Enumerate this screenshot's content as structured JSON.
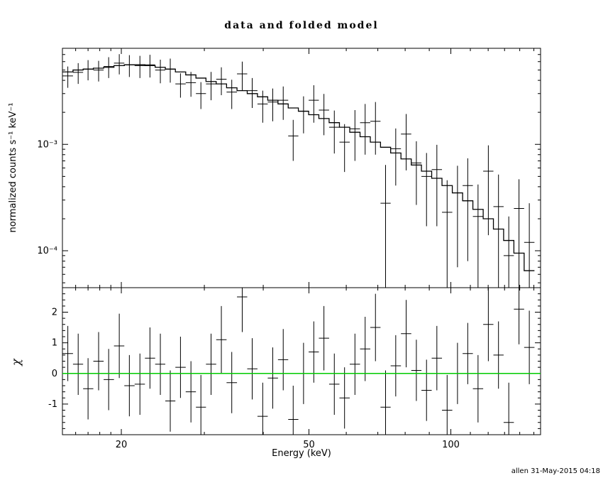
{
  "chart_data": {
    "type": "line",
    "title": "data and folded model",
    "xlabel": "Energy (keV)",
    "ylabel_top": "normalized counts s⁻¹ keV⁻¹",
    "ylabel_bottom": "χ",
    "footer": "allen 31-May-2015 04:18",
    "x_scale": "log",
    "y_scale_top": "log",
    "y_scale_bottom": "linear",
    "xlim": [
      15,
      155
    ],
    "ylim_top": [
      4.5e-05,
      0.008
    ],
    "ylim_bottom": [
      -2.0,
      2.8
    ],
    "legend": "none",
    "grid": false,
    "x_ticks": [
      {
        "v": 20,
        "label": "20"
      },
      {
        "v": 50,
        "label": "50"
      },
      {
        "v": 100,
        "label": "100"
      }
    ],
    "y_ticks_top": [
      {
        "v": 0.001,
        "label": "10⁻³"
      },
      {
        "v": 0.0001,
        "label": "10⁻⁴"
      }
    ],
    "y_ticks_bottom": [
      {
        "v": 2,
        "label": "2"
      },
      {
        "v": 1,
        "label": "1"
      },
      {
        "v": 0,
        "label": "0"
      },
      {
        "v": -1,
        "label": "-1"
      }
    ],
    "model_color": "#000000",
    "data_color": "#000000",
    "zero_line_color": "#00cc00",
    "energy_kev": [
      15.4,
      16.2,
      17.0,
      17.9,
      18.8,
      19.8,
      20.8,
      21.9,
      23.0,
      24.2,
      25.4,
      26.7,
      28.1,
      29.5,
      31.0,
      32.6,
      34.3,
      36.1,
      37.9,
      39.9,
      41.9,
      44.1,
      46.3,
      48.7,
      51.2,
      53.8,
      56.6,
      59.5,
      62.6,
      65.8,
      69.2,
      72.7,
      76.4,
      80.4,
      84.5,
      88.8,
      93.4,
      98.2,
      103.3,
      108.6,
      114.2,
      120.1,
      126.2,
      132.7,
      139.5,
      146.7
    ],
    "model_counts": [
      0.0048,
      0.005,
      0.0051,
      0.0052,
      0.0053,
      0.0055,
      0.0056,
      0.0056,
      0.0055,
      0.0053,
      0.0051,
      0.0048,
      0.0045,
      0.0042,
      0.0039,
      0.0037,
      0.0034,
      0.0032,
      0.003,
      0.0028,
      0.0026,
      0.0024,
      0.0022,
      0.00205,
      0.0019,
      0.00175,
      0.0016,
      0.00145,
      0.0013,
      0.00118,
      0.00105,
      0.00094,
      0.00083,
      0.00073,
      0.00064,
      0.00056,
      0.00048,
      0.00041,
      0.00035,
      0.000295,
      0.000245,
      0.0002,
      0.00016,
      0.000125,
      9.5e-05,
      6.5e-05
    ],
    "data_counts": [
      0.0044,
      0.00475,
      0.0051,
      0.005,
      0.0054,
      0.0058,
      0.0056,
      0.0055,
      0.0056,
      0.005,
      0.0051,
      0.0037,
      0.0038,
      0.003,
      0.0037,
      0.0041,
      0.0031,
      0.0046,
      0.0032,
      0.0024,
      0.0025,
      0.0026,
      0.0012,
      0.00205,
      0.0026,
      0.0021,
      0.00145,
      0.00105,
      0.0014,
      0.0016,
      0.00165,
      0.00028,
      0.00091,
      0.00125,
      0.00067,
      0.0005,
      0.00058,
      0.00023,
      0.00035,
      0.00041,
      0.00021,
      0.00056,
      0.00026,
      9e-05,
      0.00025,
      0.00012
    ],
    "data_err": [
      0.001,
      0.00105,
      0.0011,
      0.0011,
      0.0012,
      0.00125,
      0.0013,
      0.0013,
      0.00135,
      0.00125,
      0.0013,
      0.00095,
      0.001,
      0.00085,
      0.0011,
      0.0012,
      0.00095,
      0.0014,
      0.001,
      0.0008,
      0.00085,
      0.0009,
      0.0005,
      0.00078,
      0.001,
      0.00088,
      0.00063,
      0.0005,
      0.0007,
      0.0008,
      0.00085,
      0.00036,
      0.0005,
      0.00068,
      0.0004,
      0.00033,
      0.00041,
      0.00023,
      0.00028,
      0.00033,
      0.00021,
      0.00042,
      0.00026,
      0.00012,
      0.00022,
      0.00016
    ],
    "chi": [
      0.65,
      0.3,
      -0.5,
      0.4,
      -0.2,
      0.9,
      -0.4,
      -0.35,
      0.5,
      0.3,
      -0.9,
      0.2,
      -0.6,
      -1.1,
      0.3,
      1.1,
      -0.3,
      2.5,
      0.15,
      -1.4,
      -0.15,
      0.45,
      -1.5,
      0.0,
      0.7,
      1.15,
      -0.35,
      -0.8,
      0.3,
      0.8,
      1.5,
      -1.1,
      0.25,
      1.3,
      0.1,
      -0.55,
      0.5,
      -1.2,
      0.0,
      0.65,
      -0.5,
      1.6,
      0.6,
      -1.6,
      2.1,
      0.85
    ],
    "chi_err": [
      0.9,
      1.0,
      1.0,
      0.95,
      1.0,
      1.05,
      1.0,
      1.0,
      1.0,
      1.0,
      1.0,
      1.0,
      1.0,
      1.05,
      1.0,
      1.1,
      1.0,
      1.15,
      1.0,
      1.1,
      1.0,
      1.0,
      1.1,
      1.0,
      1.0,
      1.05,
      1.0,
      1.0,
      1.0,
      1.05,
      1.1,
      1.2,
      1.0,
      1.1,
      1.0,
      1.0,
      1.05,
      1.15,
      1.0,
      1.0,
      1.1,
      1.2,
      1.1,
      1.3,
      1.15,
      1.2
    ]
  }
}
